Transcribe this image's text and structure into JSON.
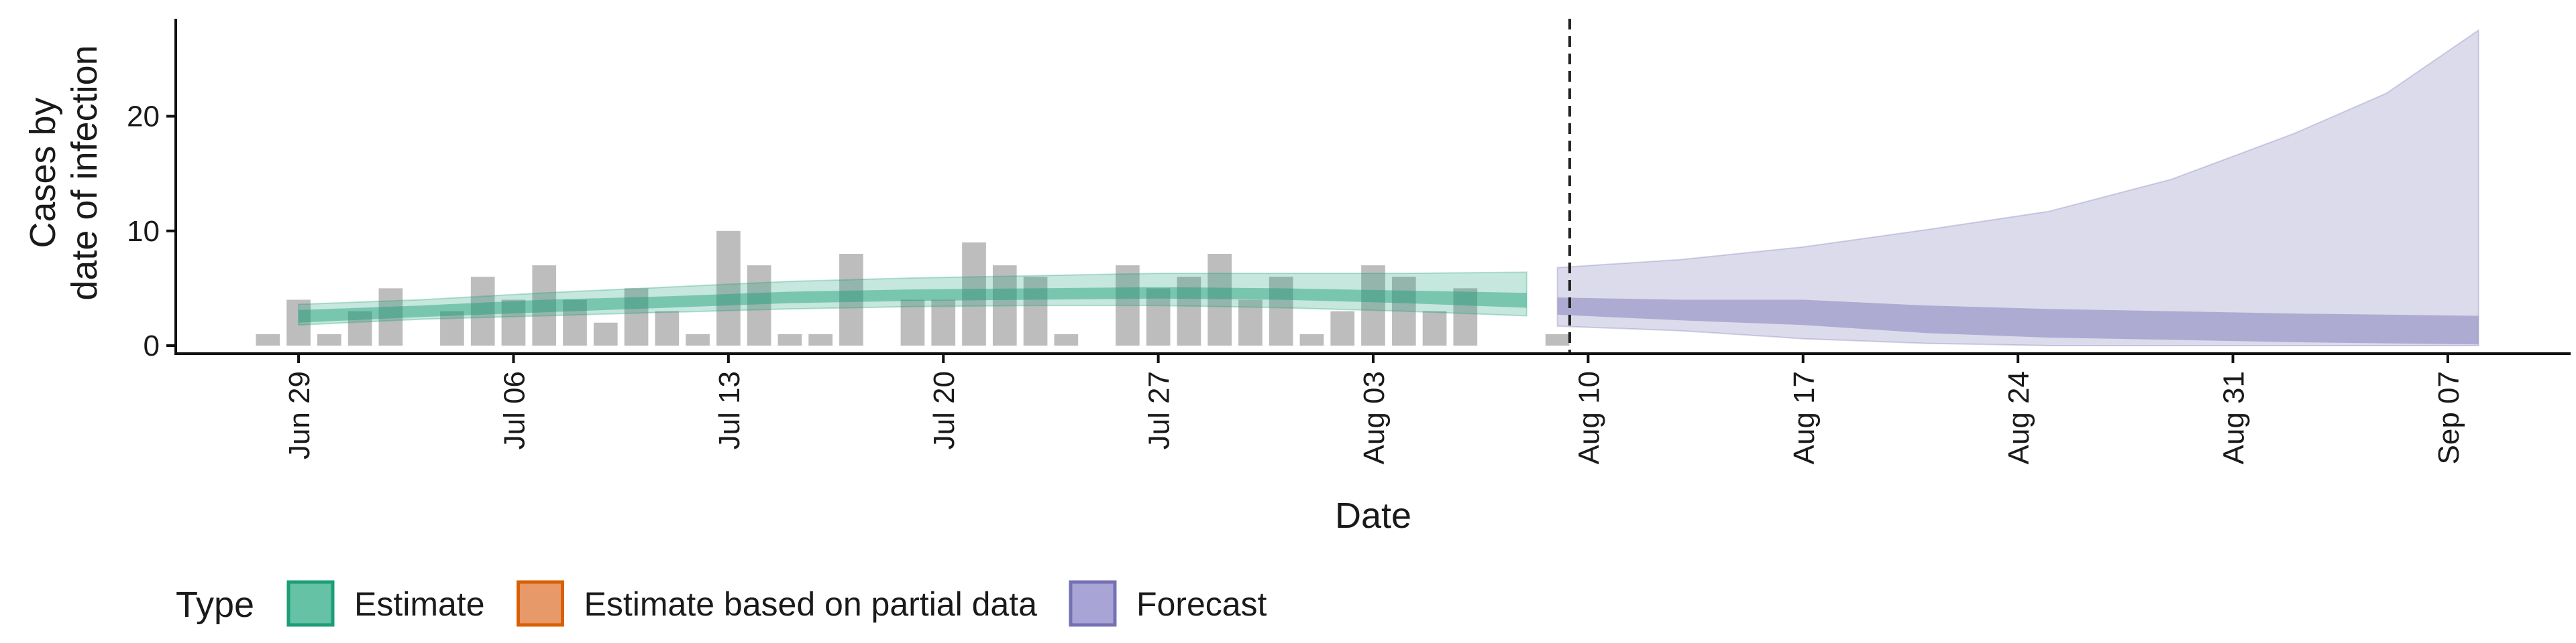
{
  "chart_data": {
    "type": "area",
    "xlabel": "Date",
    "ylabel_lines": [
      "Cases by",
      "date of infection"
    ],
    "x_axis": {
      "start": "2020-06-25",
      "end": "2020-09-11",
      "ticks": [
        "Jun 29",
        "Jul 06",
        "Jul 13",
        "Jul 20",
        "Jul 27",
        "Aug 03",
        "Aug 10",
        "Aug 17",
        "Aug 24",
        "Aug 31",
        "Sep 07"
      ],
      "tick_dates": [
        "2020-06-29",
        "2020-07-06",
        "2020-07-13",
        "2020-07-20",
        "2020-07-27",
        "2020-08-03",
        "2020-08-10",
        "2020-08-17",
        "2020-08-24",
        "2020-08-31",
        "2020-09-07"
      ]
    },
    "y_axis": {
      "ticks": [
        "0",
        "10",
        "20"
      ],
      "tick_values": [
        0,
        10,
        20
      ],
      "ylim": [
        0,
        28.5
      ]
    },
    "grid": false,
    "forecast_date": "2020-08-09",
    "observed_cases": {
      "dates": [
        "2020-06-28",
        "2020-06-29",
        "2020-06-30",
        "2020-07-01",
        "2020-07-02",
        "2020-07-03",
        "2020-07-04",
        "2020-07-05",
        "2020-07-06",
        "2020-07-07",
        "2020-07-08",
        "2020-07-09",
        "2020-07-10",
        "2020-07-11",
        "2020-07-12",
        "2020-07-13",
        "2020-07-14",
        "2020-07-15",
        "2020-07-16",
        "2020-07-17",
        "2020-07-18",
        "2020-07-19",
        "2020-07-20",
        "2020-07-21",
        "2020-07-22",
        "2020-07-23",
        "2020-07-24",
        "2020-07-25",
        "2020-07-26",
        "2020-07-27",
        "2020-07-28",
        "2020-07-29",
        "2020-07-30",
        "2020-07-31",
        "2020-08-01",
        "2020-08-02",
        "2020-08-03",
        "2020-08-04",
        "2020-08-05",
        "2020-08-06",
        "2020-08-07",
        "2020-08-08",
        "2020-08-09"
      ],
      "values": [
        1,
        4,
        1,
        3,
        5,
        0,
        3,
        6,
        4,
        7,
        4,
        2,
        5,
        3,
        1,
        10,
        7,
        1,
        1,
        8,
        0,
        4,
        4,
        9,
        7,
        6,
        1,
        0,
        7,
        5,
        6,
        8,
        4,
        6,
        1,
        3,
        7,
        6,
        3,
        5,
        0,
        0,
        1
      ]
    },
    "series": [
      {
        "name": "Estimate",
        "color": "#1b9e77",
        "dates": [
          "2020-06-29",
          "2020-07-03",
          "2020-07-07",
          "2020-07-11",
          "2020-07-15",
          "2020-07-19",
          "2020-07-23",
          "2020-07-27",
          "2020-07-31",
          "2020-08-04",
          "2020-08-08"
        ],
        "outer_lower": [
          1.8,
          2.3,
          2.6,
          2.9,
          3.2,
          3.4,
          3.5,
          3.5,
          3.3,
          3.0,
          2.6
        ],
        "outer_upper": [
          3.6,
          4.0,
          4.6,
          5.1,
          5.6,
          5.9,
          6.1,
          6.3,
          6.3,
          6.3,
          6.4
        ],
        "inner_lower": [
          2.0,
          2.5,
          2.9,
          3.3,
          3.7,
          3.9,
          4.0,
          4.1,
          4.0,
          3.7,
          3.3
        ],
        "inner_upper": [
          3.1,
          3.5,
          4.0,
          4.3,
          4.7,
          4.9,
          5.0,
          5.1,
          5.0,
          4.8,
          4.6
        ]
      },
      {
        "name": "Forecast",
        "color": "#7570b3",
        "dates": [
          "2020-08-09",
          "2020-08-13",
          "2020-08-17",
          "2020-08-21",
          "2020-08-25",
          "2020-08-29",
          "2020-09-02",
          "2020-09-05",
          "2020-09-08"
        ],
        "outer_lower": [
          1.7,
          1.3,
          0.6,
          0.2,
          0.0,
          0.0,
          0.0,
          0.0,
          0.0
        ],
        "outer_upper": [
          6.8,
          7.5,
          8.6,
          10.1,
          11.7,
          14.5,
          18.5,
          22.0,
          27.5
        ],
        "inner_lower": [
          2.7,
          2.2,
          1.8,
          1.1,
          0.7,
          0.5,
          0.3,
          0.2,
          0.1
        ],
        "inner_upper": [
          4.2,
          4.0,
          4.0,
          3.5,
          3.2,
          3.0,
          2.8,
          2.7,
          2.6
        ]
      }
    ],
    "legend": {
      "position": "bottom-left",
      "title": "Type",
      "items": [
        {
          "label": "Estimate",
          "fill": "#66c2a5",
          "stroke": "#1b9e77"
        },
        {
          "label": "Estimate based on partial data",
          "fill": "#e7996a",
          "stroke": "#d95f02"
        },
        {
          "label": "Forecast",
          "fill": "#a9a4d6",
          "stroke": "#7570b3"
        }
      ]
    }
  }
}
